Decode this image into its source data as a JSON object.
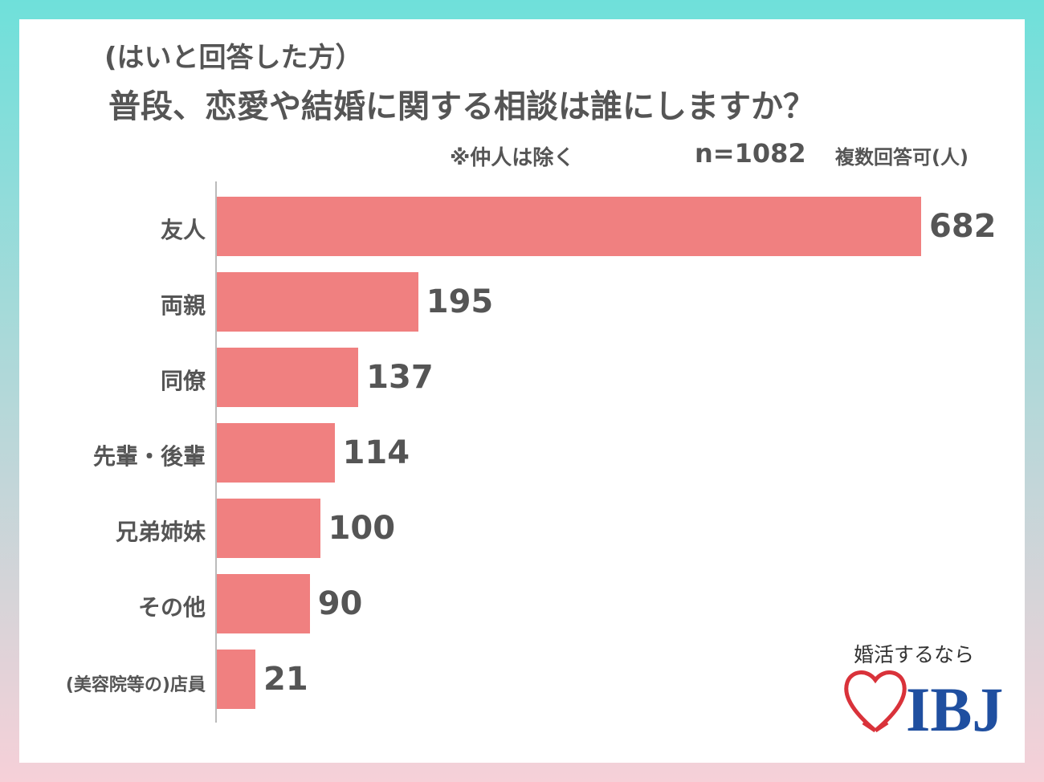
{
  "header": {
    "subtitle": "(はいと回答した方）",
    "title": "普段、恋愛や結婚に関する相談は誰にしますか？",
    "note": "※仲人は除く",
    "sample": "n=1082",
    "multi": "複数回答可(人)"
  },
  "chart_data": {
    "type": "bar",
    "orientation": "horizontal",
    "categories": [
      "友人",
      "両親",
      "同僚",
      "先輩・後輩",
      "兄弟姉妹",
      "その他",
      "(美容院等の)店員"
    ],
    "values": [
      682,
      195,
      137,
      114,
      100,
      90,
      21
    ],
    "xlim": [
      0,
      682
    ],
    "grid": false,
    "bar_color": "#f08080"
  },
  "logo": {
    "tagline": "婚活するなら",
    "brand": "IBJ",
    "heart_color": "#d9323a",
    "brand_color": "#1f4fa0"
  }
}
